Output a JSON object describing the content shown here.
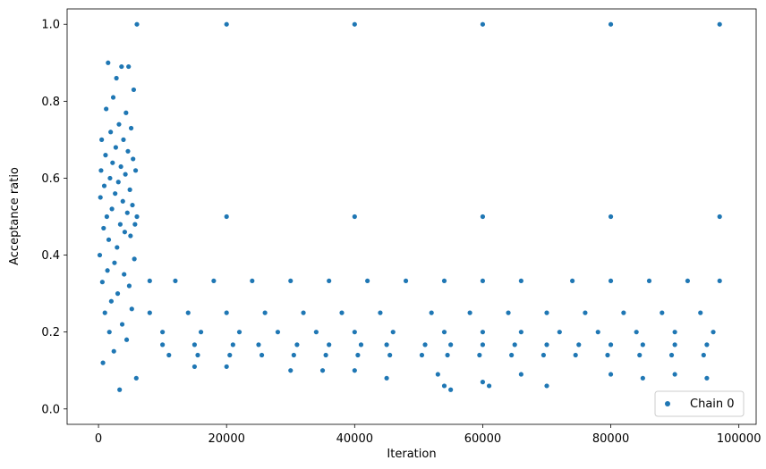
{
  "chart_data": {
    "type": "scatter",
    "xlabel": "Iteration",
    "ylabel": "Acceptance ratio",
    "xlim": [
      -4900,
      102700
    ],
    "ylim": [
      -0.04,
      1.04
    ],
    "xticks": [
      0,
      20000,
      40000,
      60000,
      80000,
      100000
    ],
    "xtick_labels": [
      "0",
      "20000",
      "40000",
      "60000",
      "80000",
      "100000"
    ],
    "yticks": [
      0.0,
      0.2,
      0.4,
      0.6,
      0.8,
      1.0
    ],
    "ytick_labels": [
      "0.0",
      "0.2",
      "0.4",
      "0.6",
      "0.8",
      "1.0"
    ],
    "grid": false,
    "legend": {
      "position": "lower-right",
      "entries": [
        "Chain 0"
      ]
    },
    "series": [
      {
        "name": "Chain 0",
        "color": "#1f77b4",
        "marker": "circle",
        "points": [
          [
            200,
            0.4
          ],
          [
            300,
            0.55
          ],
          [
            400,
            0.62
          ],
          [
            500,
            0.7
          ],
          [
            600,
            0.33
          ],
          [
            700,
            0.12
          ],
          [
            800,
            0.47
          ],
          [
            900,
            0.58
          ],
          [
            1000,
            0.25
          ],
          [
            1100,
            0.66
          ],
          [
            1200,
            0.78
          ],
          [
            1300,
            0.5
          ],
          [
            1400,
            0.36
          ],
          [
            1500,
            0.9
          ],
          [
            1600,
            0.44
          ],
          [
            1700,
            0.2
          ],
          [
            1800,
            0.6
          ],
          [
            1900,
            0.72
          ],
          [
            2000,
            0.28
          ],
          [
            2100,
            0.52
          ],
          [
            2200,
            0.64
          ],
          [
            2300,
            0.81
          ],
          [
            2400,
            0.15
          ],
          [
            2500,
            0.38
          ],
          [
            2600,
            0.56
          ],
          [
            2700,
            0.68
          ],
          [
            2800,
            0.86
          ],
          [
            2900,
            0.42
          ],
          [
            3000,
            0.3
          ],
          [
            3100,
            0.59
          ],
          [
            3200,
            0.74
          ],
          [
            3300,
            0.05
          ],
          [
            3400,
            0.48
          ],
          [
            3500,
            0.63
          ],
          [
            3600,
            0.89
          ],
          [
            3700,
            0.22
          ],
          [
            3800,
            0.54
          ],
          [
            3900,
            0.7
          ],
          [
            4000,
            0.35
          ],
          [
            4100,
            0.46
          ],
          [
            4200,
            0.61
          ],
          [
            4300,
            0.77
          ],
          [
            4400,
            0.18
          ],
          [
            4500,
            0.51
          ],
          [
            4600,
            0.67
          ],
          [
            4700,
            0.89
          ],
          [
            4800,
            0.32
          ],
          [
            4900,
            0.57
          ],
          [
            5000,
            0.45
          ],
          [
            5100,
            0.73
          ],
          [
            5200,
            0.26
          ],
          [
            5300,
            0.53
          ],
          [
            5400,
            0.65
          ],
          [
            5500,
            0.83
          ],
          [
            5600,
            0.39
          ],
          [
            5700,
            0.48
          ],
          [
            5800,
            0.62
          ],
          [
            5900,
            0.08
          ],
          [
            6000,
            1.0
          ],
          [
            20000,
            1.0
          ],
          [
            40000,
            1.0
          ],
          [
            60000,
            1.0
          ],
          [
            80000,
            1.0
          ],
          [
            97000,
            1.0
          ],
          [
            6000,
            0.5
          ],
          [
            20000,
            0.5
          ],
          [
            40000,
            0.5
          ],
          [
            60000,
            0.5
          ],
          [
            80000,
            0.5
          ],
          [
            97000,
            0.5
          ],
          [
            8000,
            0.333
          ],
          [
            12000,
            0.333
          ],
          [
            18000,
            0.333
          ],
          [
            24000,
            0.333
          ],
          [
            30000,
            0.333
          ],
          [
            36000,
            0.333
          ],
          [
            42000,
            0.333
          ],
          [
            48000,
            0.333
          ],
          [
            54000,
            0.333
          ],
          [
            60000,
            0.333
          ],
          [
            66000,
            0.333
          ],
          [
            74000,
            0.333
          ],
          [
            80000,
            0.333
          ],
          [
            86000,
            0.333
          ],
          [
            92000,
            0.333
          ],
          [
            97000,
            0.333
          ],
          [
            8000,
            0.25
          ],
          [
            14000,
            0.25
          ],
          [
            20000,
            0.25
          ],
          [
            26000,
            0.25
          ],
          [
            32000,
            0.25
          ],
          [
            38000,
            0.25
          ],
          [
            44000,
            0.25
          ],
          [
            52000,
            0.25
          ],
          [
            58000,
            0.25
          ],
          [
            64000,
            0.25
          ],
          [
            70000,
            0.25
          ],
          [
            76000,
            0.25
          ],
          [
            82000,
            0.25
          ],
          [
            88000,
            0.25
          ],
          [
            94000,
            0.25
          ],
          [
            10000,
            0.2
          ],
          [
            16000,
            0.2
          ],
          [
            22000,
            0.2
          ],
          [
            28000,
            0.2
          ],
          [
            34000,
            0.2
          ],
          [
            40000,
            0.2
          ],
          [
            46000,
            0.2
          ],
          [
            54000,
            0.2
          ],
          [
            60000,
            0.2
          ],
          [
            66000,
            0.2
          ],
          [
            72000,
            0.2
          ],
          [
            78000,
            0.2
          ],
          [
            84000,
            0.2
          ],
          [
            90000,
            0.2
          ],
          [
            96000,
            0.2
          ],
          [
            10000,
            0.167
          ],
          [
            15000,
            0.167
          ],
          [
            21000,
            0.167
          ],
          [
            25000,
            0.167
          ],
          [
            31000,
            0.167
          ],
          [
            36000,
            0.167
          ],
          [
            41000,
            0.167
          ],
          [
            45000,
            0.167
          ],
          [
            51000,
            0.167
          ],
          [
            55000,
            0.167
          ],
          [
            60000,
            0.167
          ],
          [
            65000,
            0.167
          ],
          [
            70000,
            0.167
          ],
          [
            75000,
            0.167
          ],
          [
            80000,
            0.167
          ],
          [
            85000,
            0.167
          ],
          [
            90000,
            0.167
          ],
          [
            95000,
            0.167
          ],
          [
            11000,
            0.14
          ],
          [
            15500,
            0.14
          ],
          [
            20500,
            0.14
          ],
          [
            25500,
            0.14
          ],
          [
            30500,
            0.14
          ],
          [
            35500,
            0.14
          ],
          [
            40500,
            0.14
          ],
          [
            45500,
            0.14
          ],
          [
            50500,
            0.14
          ],
          [
            54500,
            0.14
          ],
          [
            59500,
            0.14
          ],
          [
            64500,
            0.14
          ],
          [
            69500,
            0.14
          ],
          [
            74500,
            0.14
          ],
          [
            79500,
            0.14
          ],
          [
            84500,
            0.14
          ],
          [
            89500,
            0.14
          ],
          [
            94500,
            0.14
          ],
          [
            15000,
            0.11
          ],
          [
            20000,
            0.11
          ],
          [
            30000,
            0.1
          ],
          [
            35000,
            0.1
          ],
          [
            40000,
            0.1
          ],
          [
            45000,
            0.08
          ],
          [
            53000,
            0.09
          ],
          [
            54000,
            0.06
          ],
          [
            55000,
            0.05
          ],
          [
            60000,
            0.07
          ],
          [
            61000,
            0.06
          ],
          [
            66000,
            0.09
          ],
          [
            70000,
            0.06
          ],
          [
            80000,
            0.09
          ],
          [
            85000,
            0.08
          ],
          [
            90000,
            0.09
          ],
          [
            95000,
            0.08
          ]
        ]
      }
    ]
  }
}
